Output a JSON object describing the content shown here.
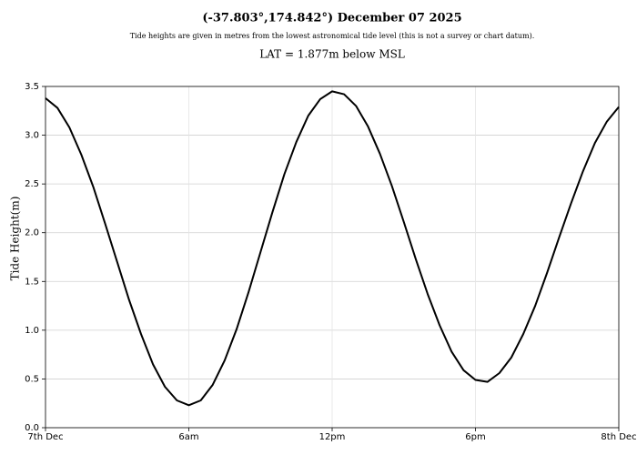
{
  "chart_data": {
    "type": "line",
    "title": "(-37.803°,174.842°) December 07 2025",
    "subtitle": "Tide heights are given in metres from the lowest astronomical tide level (this is not a survey or chart datum).",
    "annotation": "LAT = 1.877m below MSL",
    "y_label": "Tide Height(m)",
    "x": [
      0,
      0.5,
      1,
      1.5,
      2,
      2.5,
      3,
      3.5,
      4,
      4.5,
      5,
      5.5,
      6,
      6.5,
      7,
      7.5,
      8,
      8.5,
      9,
      9.5,
      10,
      10.5,
      11,
      11.5,
      12,
      12.5,
      13,
      13.5,
      14,
      14.5,
      15,
      15.5,
      16,
      16.5,
      17,
      17.5,
      18,
      18.5,
      19,
      19.5,
      20,
      20.5,
      21,
      21.5,
      22,
      22.5,
      23,
      23.5,
      24
    ],
    "values": [
      3.38,
      3.28,
      3.08,
      2.8,
      2.47,
      2.09,
      1.7,
      1.31,
      0.96,
      0.65,
      0.42,
      0.28,
      0.23,
      0.28,
      0.44,
      0.69,
      1.01,
      1.39,
      1.8,
      2.21,
      2.6,
      2.93,
      3.2,
      3.37,
      3.45,
      3.42,
      3.3,
      3.09,
      2.81,
      2.48,
      2.11,
      1.73,
      1.37,
      1.05,
      0.78,
      0.59,
      0.49,
      0.47,
      0.56,
      0.72,
      0.96,
      1.25,
      1.59,
      1.95,
      2.3,
      2.63,
      2.92,
      3.14,
      3.29
    ],
    "color": "#000000",
    "xlim": [
      0,
      24
    ],
    "xticks": [
      {
        "value": 0,
        "label": "7th Dec"
      },
      {
        "value": 6,
        "label": "6am"
      },
      {
        "value": 12,
        "label": "12pm"
      },
      {
        "value": 18,
        "label": "6pm"
      },
      {
        "value": 24,
        "label": "8th Dec"
      }
    ],
    "ylim": [
      0,
      3.5
    ],
    "yticks": [
      {
        "value": 0,
        "label": "0.0"
      },
      0.5,
      {
        "value": 1,
        "label": "1.0"
      },
      1.5,
      {
        "value": 2,
        "label": "2.0"
      },
      2.5,
      {
        "value": 3,
        "label": "3.0"
      },
      3.5
    ],
    "grid": true
  }
}
